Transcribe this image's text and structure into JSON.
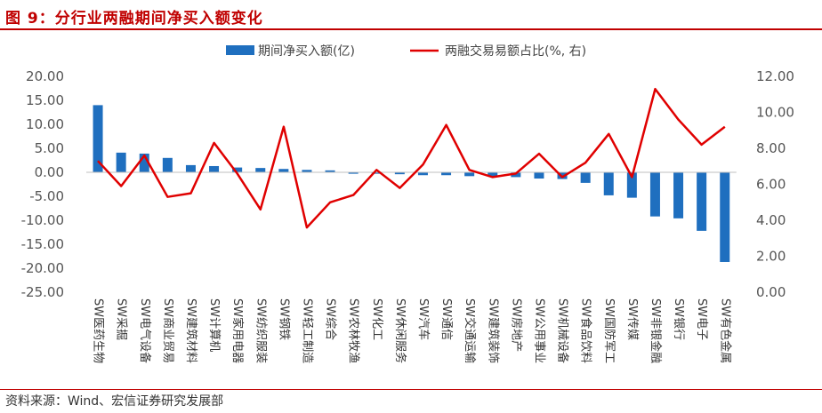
{
  "header": {
    "title": "图 9：分行业两融期间净买入额变化"
  },
  "footer": {
    "source": "资料来源：Wind、宏信证券研究发展部"
  },
  "colors": {
    "bar": "#1f6fbf",
    "line": "#e00000",
    "title": "#c00000"
  },
  "chart_data": {
    "type": "bar+line",
    "title": "",
    "legend_position": "top-center",
    "grid": false,
    "categories": [
      "SW医药生物",
      "SW采掘",
      "SW电气设备",
      "SW商业贸易",
      "SW建筑材料",
      "SW计算机",
      "SW家用电器",
      "SW纺织服装",
      "SW钢铁",
      "SW轻工制造",
      "SW综合",
      "SW农林牧渔",
      "SW化工",
      "SW休闲服务",
      "SW汽车",
      "SW通信",
      "SW交通运输",
      "SW建筑装饰",
      "SW房地产",
      "SW公用事业",
      "SW机械设备",
      "SW食品饮料",
      "SW国防军工",
      "SW传媒",
      "SW非银金融",
      "SW银行",
      "SW电子",
      "SW有色金属"
    ],
    "y_left": {
      "ylim": [
        -25,
        20
      ],
      "ticks": [
        "20.00",
        "15.00",
        "10.00",
        "5.00",
        "0.00",
        "-5.00",
        "-10.00",
        "-15.00",
        "-20.00",
        "-25.00"
      ]
    },
    "y_right": {
      "ylim": [
        0,
        12
      ],
      "ticks": [
        "12.00",
        "10.00",
        "8.00",
        "6.00",
        "4.00",
        "2.00",
        "0.00"
      ]
    },
    "series": [
      {
        "name": "期间净买入额(亿)",
        "type": "bar",
        "axis": "left",
        "values": [
          14.0,
          4.1,
          3.9,
          3.0,
          1.5,
          1.3,
          1.0,
          0.9,
          0.7,
          0.5,
          0.4,
          -0.3,
          -0.3,
          -0.4,
          -0.6,
          -0.6,
          -0.8,
          -0.9,
          -1.0,
          -1.3,
          -1.4,
          -2.2,
          -4.8,
          -5.3,
          -9.2,
          -9.6,
          -12.2,
          -18.7
        ]
      },
      {
        "name": "两融交易易额占比(%, 右)",
        "type": "line",
        "axis": "right",
        "values": [
          7.3,
          5.9,
          7.6,
          5.3,
          5.5,
          8.3,
          6.6,
          4.6,
          9.2,
          3.6,
          5.0,
          5.4,
          6.8,
          5.8,
          7.1,
          9.3,
          6.8,
          6.4,
          6.6,
          7.7,
          6.4,
          7.2,
          8.8,
          6.4,
          11.3,
          9.6,
          8.2,
          9.2
        ]
      }
    ]
  }
}
